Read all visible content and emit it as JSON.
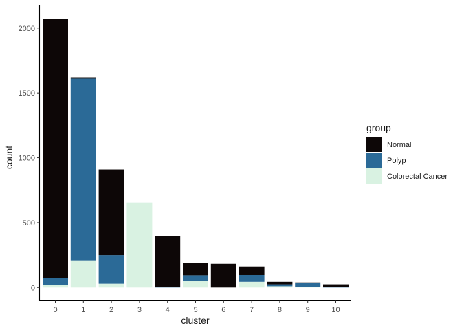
{
  "chart_data": {
    "type": "bar",
    "stacked": true,
    "xlabel": "cluster",
    "ylabel": "count",
    "categories": [
      "0",
      "1",
      "2",
      "3",
      "4",
      "5",
      "6",
      "7",
      "8",
      "9",
      "10"
    ],
    "ylim": [
      0,
      2100
    ],
    "yticks": [
      0,
      500,
      1000,
      1500,
      2000
    ],
    "grid": false,
    "legend": {
      "title": "group",
      "placement": "right",
      "entries": [
        "Normal",
        "Polyp",
        "Colorectal Cancer"
      ]
    },
    "series": [
      {
        "name": "Colorectal Cancer",
        "color": "#d9f2e2",
        "values": [
          20,
          210,
          30,
          655,
          0,
          50,
          0,
          45,
          10,
          5,
          0
        ]
      },
      {
        "name": "Polyp",
        "color": "#2b6a97",
        "values": [
          55,
          1400,
          220,
          0,
          5,
          45,
          0,
          52,
          15,
          30,
          3
        ]
      },
      {
        "name": "Normal",
        "color": "#0d0707",
        "values": [
          1995,
          10,
          660,
          0,
          393,
          95,
          183,
          65,
          20,
          5,
          22
        ]
      }
    ]
  }
}
